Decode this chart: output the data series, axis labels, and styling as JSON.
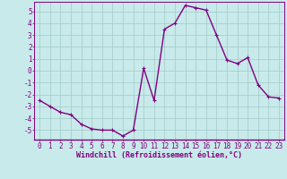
{
  "x": [
    0,
    1,
    2,
    3,
    4,
    5,
    6,
    7,
    8,
    9,
    10,
    11,
    12,
    13,
    14,
    15,
    16,
    17,
    18,
    19,
    20,
    21,
    22,
    23
  ],
  "y": [
    -2.5,
    -3.0,
    -3.5,
    -3.7,
    -4.5,
    -4.9,
    -5.0,
    -5.0,
    -5.5,
    -5.0,
    0.2,
    -2.5,
    3.5,
    4.0,
    5.5,
    5.3,
    5.1,
    3.0,
    0.9,
    0.6,
    1.1,
    -1.2,
    -2.2,
    -2.3
  ],
  "line_color": "#800080",
  "marker": "+",
  "marker_size": 3,
  "marker_lw": 0.8,
  "bg_color": "#c8eaea",
  "grid_color": "#a0c8c8",
  "xlabel": "Windchill (Refroidissement éolien,°C)",
  "xlabel_color": "#800080",
  "tick_color": "#800080",
  "ylim": [
    -5.8,
    5.8
  ],
  "xlim": [
    -0.5,
    23.5
  ],
  "yticks": [
    -5,
    -4,
    -3,
    -2,
    -1,
    0,
    1,
    2,
    3,
    4,
    5
  ],
  "xticks": [
    0,
    1,
    2,
    3,
    4,
    5,
    6,
    7,
    8,
    9,
    10,
    11,
    12,
    13,
    14,
    15,
    16,
    17,
    18,
    19,
    20,
    21,
    22,
    23
  ],
  "spine_color": "#800080",
  "axis_line_color": "#800080",
  "line_width": 1.0,
  "figsize": [
    3.2,
    2.0
  ],
  "dpi": 100,
  "tick_fontsize": 5.5,
  "xlabel_fontsize": 6.0
}
